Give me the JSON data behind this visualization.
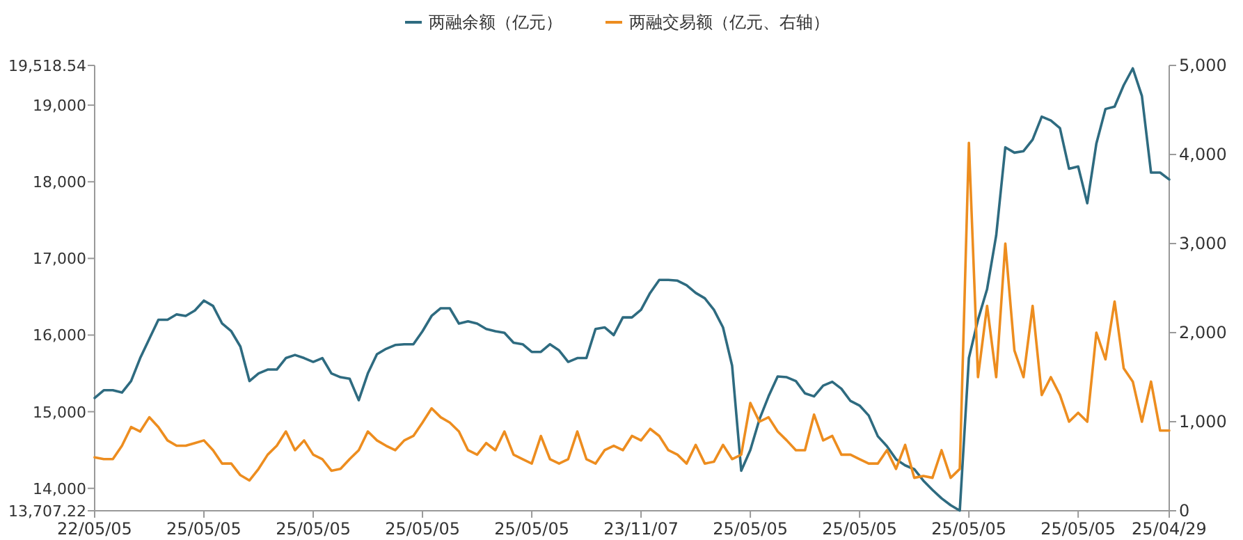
{
  "chart_data": {
    "type": "line",
    "categories": [
      "22/05/05",
      null,
      null,
      null,
      null,
      null,
      null,
      null,
      null,
      null,
      null,
      null,
      "25/05/05",
      null,
      null,
      null,
      null,
      null,
      null,
      null,
      null,
      null,
      null,
      null,
      "25/05/05",
      null,
      null,
      null,
      null,
      null,
      null,
      null,
      null,
      null,
      null,
      null,
      "25/05/05",
      null,
      null,
      null,
      null,
      null,
      null,
      null,
      null,
      null,
      null,
      null,
      "25/05/05",
      null,
      null,
      null,
      null,
      null,
      null,
      null,
      null,
      null,
      null,
      null,
      "23/11/07",
      null,
      null,
      null,
      null,
      null,
      null,
      null,
      null,
      null,
      null,
      null,
      "25/05/05",
      null,
      null,
      null,
      null,
      null,
      null,
      null,
      null,
      null,
      null,
      null,
      "25/05/05",
      null,
      null,
      null,
      null,
      null,
      null,
      null,
      null,
      null,
      null,
      null,
      "25/05/05",
      null,
      null,
      null,
      null,
      null,
      null,
      null,
      null,
      null,
      null,
      null,
      "25/05/05",
      null,
      null,
      null,
      null,
      null,
      null,
      null,
      null,
      null,
      "25/04/29"
    ],
    "series": [
      {
        "name": "两融余额（亿元）",
        "color": "#2e6b80",
        "values": [
          15180,
          15280,
          15280,
          15250,
          15400,
          15700,
          15950,
          16200,
          16200,
          16270,
          16250,
          16320,
          16450,
          16380,
          16150,
          16050,
          15850,
          15400,
          15500,
          15550,
          15550,
          15700,
          15740,
          15700,
          15650,
          15700,
          15500,
          15450,
          15430,
          15150,
          15500,
          15750,
          15820,
          15870,
          15880,
          15880,
          16050,
          16250,
          16350,
          16350,
          16150,
          16180,
          16150,
          16080,
          16050,
          16030,
          15900,
          15880,
          15780,
          15780,
          15880,
          15800,
          15650,
          15700,
          15700,
          16080,
          16100,
          16000,
          16230,
          16230,
          16330,
          16550,
          16720,
          16720,
          16710,
          16650,
          16550,
          16480,
          16330,
          16100,
          15600,
          14230,
          14500,
          14900,
          15200,
          15460,
          15450,
          15400,
          15240,
          15200,
          15340,
          15390,
          15300,
          15140,
          15080,
          14950,
          14680,
          14550,
          14380,
          14300,
          14250,
          14100,
          13980,
          13870,
          13780,
          13710,
          15700,
          16200,
          16600,
          17300,
          18450,
          18380,
          18400,
          18550,
          18850,
          18800,
          18700,
          18170,
          18200,
          17720,
          18500,
          18950,
          18980,
          19260,
          19480,
          19120,
          18120,
          18120,
          18030
        ]
      },
      {
        "name": "两融交易额（亿元、右轴）",
        "color": "#ed8d1f",
        "axis": "y2",
        "values": [
          600,
          580,
          580,
          730,
          940,
          890,
          1050,
          940,
          790,
          730,
          730,
          760,
          790,
          680,
          530,
          530,
          400,
          340,
          470,
          630,
          730,
          890,
          680,
          790,
          630,
          580,
          450,
          470,
          580,
          680,
          890,
          790,
          730,
          680,
          790,
          840,
          990,
          1150,
          1050,
          990,
          890,
          680,
          630,
          760,
          680,
          890,
          630,
          580,
          530,
          840,
          580,
          530,
          580,
          890,
          580,
          530,
          680,
          730,
          680,
          840,
          790,
          920,
          840,
          680,
          630,
          530,
          740,
          530,
          550,
          740,
          580,
          630,
          1210,
          1000,
          1050,
          890,
          790,
          680,
          680,
          1080,
          790,
          840,
          630,
          630,
          580,
          530,
          530,
          680,
          470,
          740,
          370,
          390,
          370,
          680,
          370,
          470,
          4130,
          1500,
          2300,
          1500,
          3000,
          1800,
          1500,
          2300,
          1300,
          1500,
          1300,
          1000,
          1100,
          1000,
          2000,
          1700,
          2350,
          1600,
          1450,
          1000,
          1450,
          900,
          900
        ]
      }
    ],
    "ylim": [
      13707.22,
      19518.54
    ],
    "yticks": [
      {
        "value": 13707.22,
        "label": "13,707.22"
      },
      {
        "value": 14000,
        "label": "14,000"
      },
      {
        "value": 15000,
        "label": "15,000"
      },
      {
        "value": 16000,
        "label": "16,000"
      },
      {
        "value": 17000,
        "label": "17,000"
      },
      {
        "value": 18000,
        "label": "18,000"
      },
      {
        "value": 19000,
        "label": "19,000"
      },
      {
        "value": 19518.54,
        "label": "19,518.54"
      }
    ],
    "y2lim": [
      0,
      5000
    ],
    "y2ticks": [
      0,
      {
        "value": 1000,
        "label": "1,000"
      },
      {
        "value": 2000,
        "label": "2,000"
      },
      {
        "value": 3000,
        "label": "3,000"
      },
      {
        "value": 4000,
        "label": "4,000"
      },
      {
        "value": 5000,
        "label": "5,000"
      }
    ],
    "legend": "top",
    "grid": false,
    "marker": "none",
    "line_style": "solid"
  }
}
